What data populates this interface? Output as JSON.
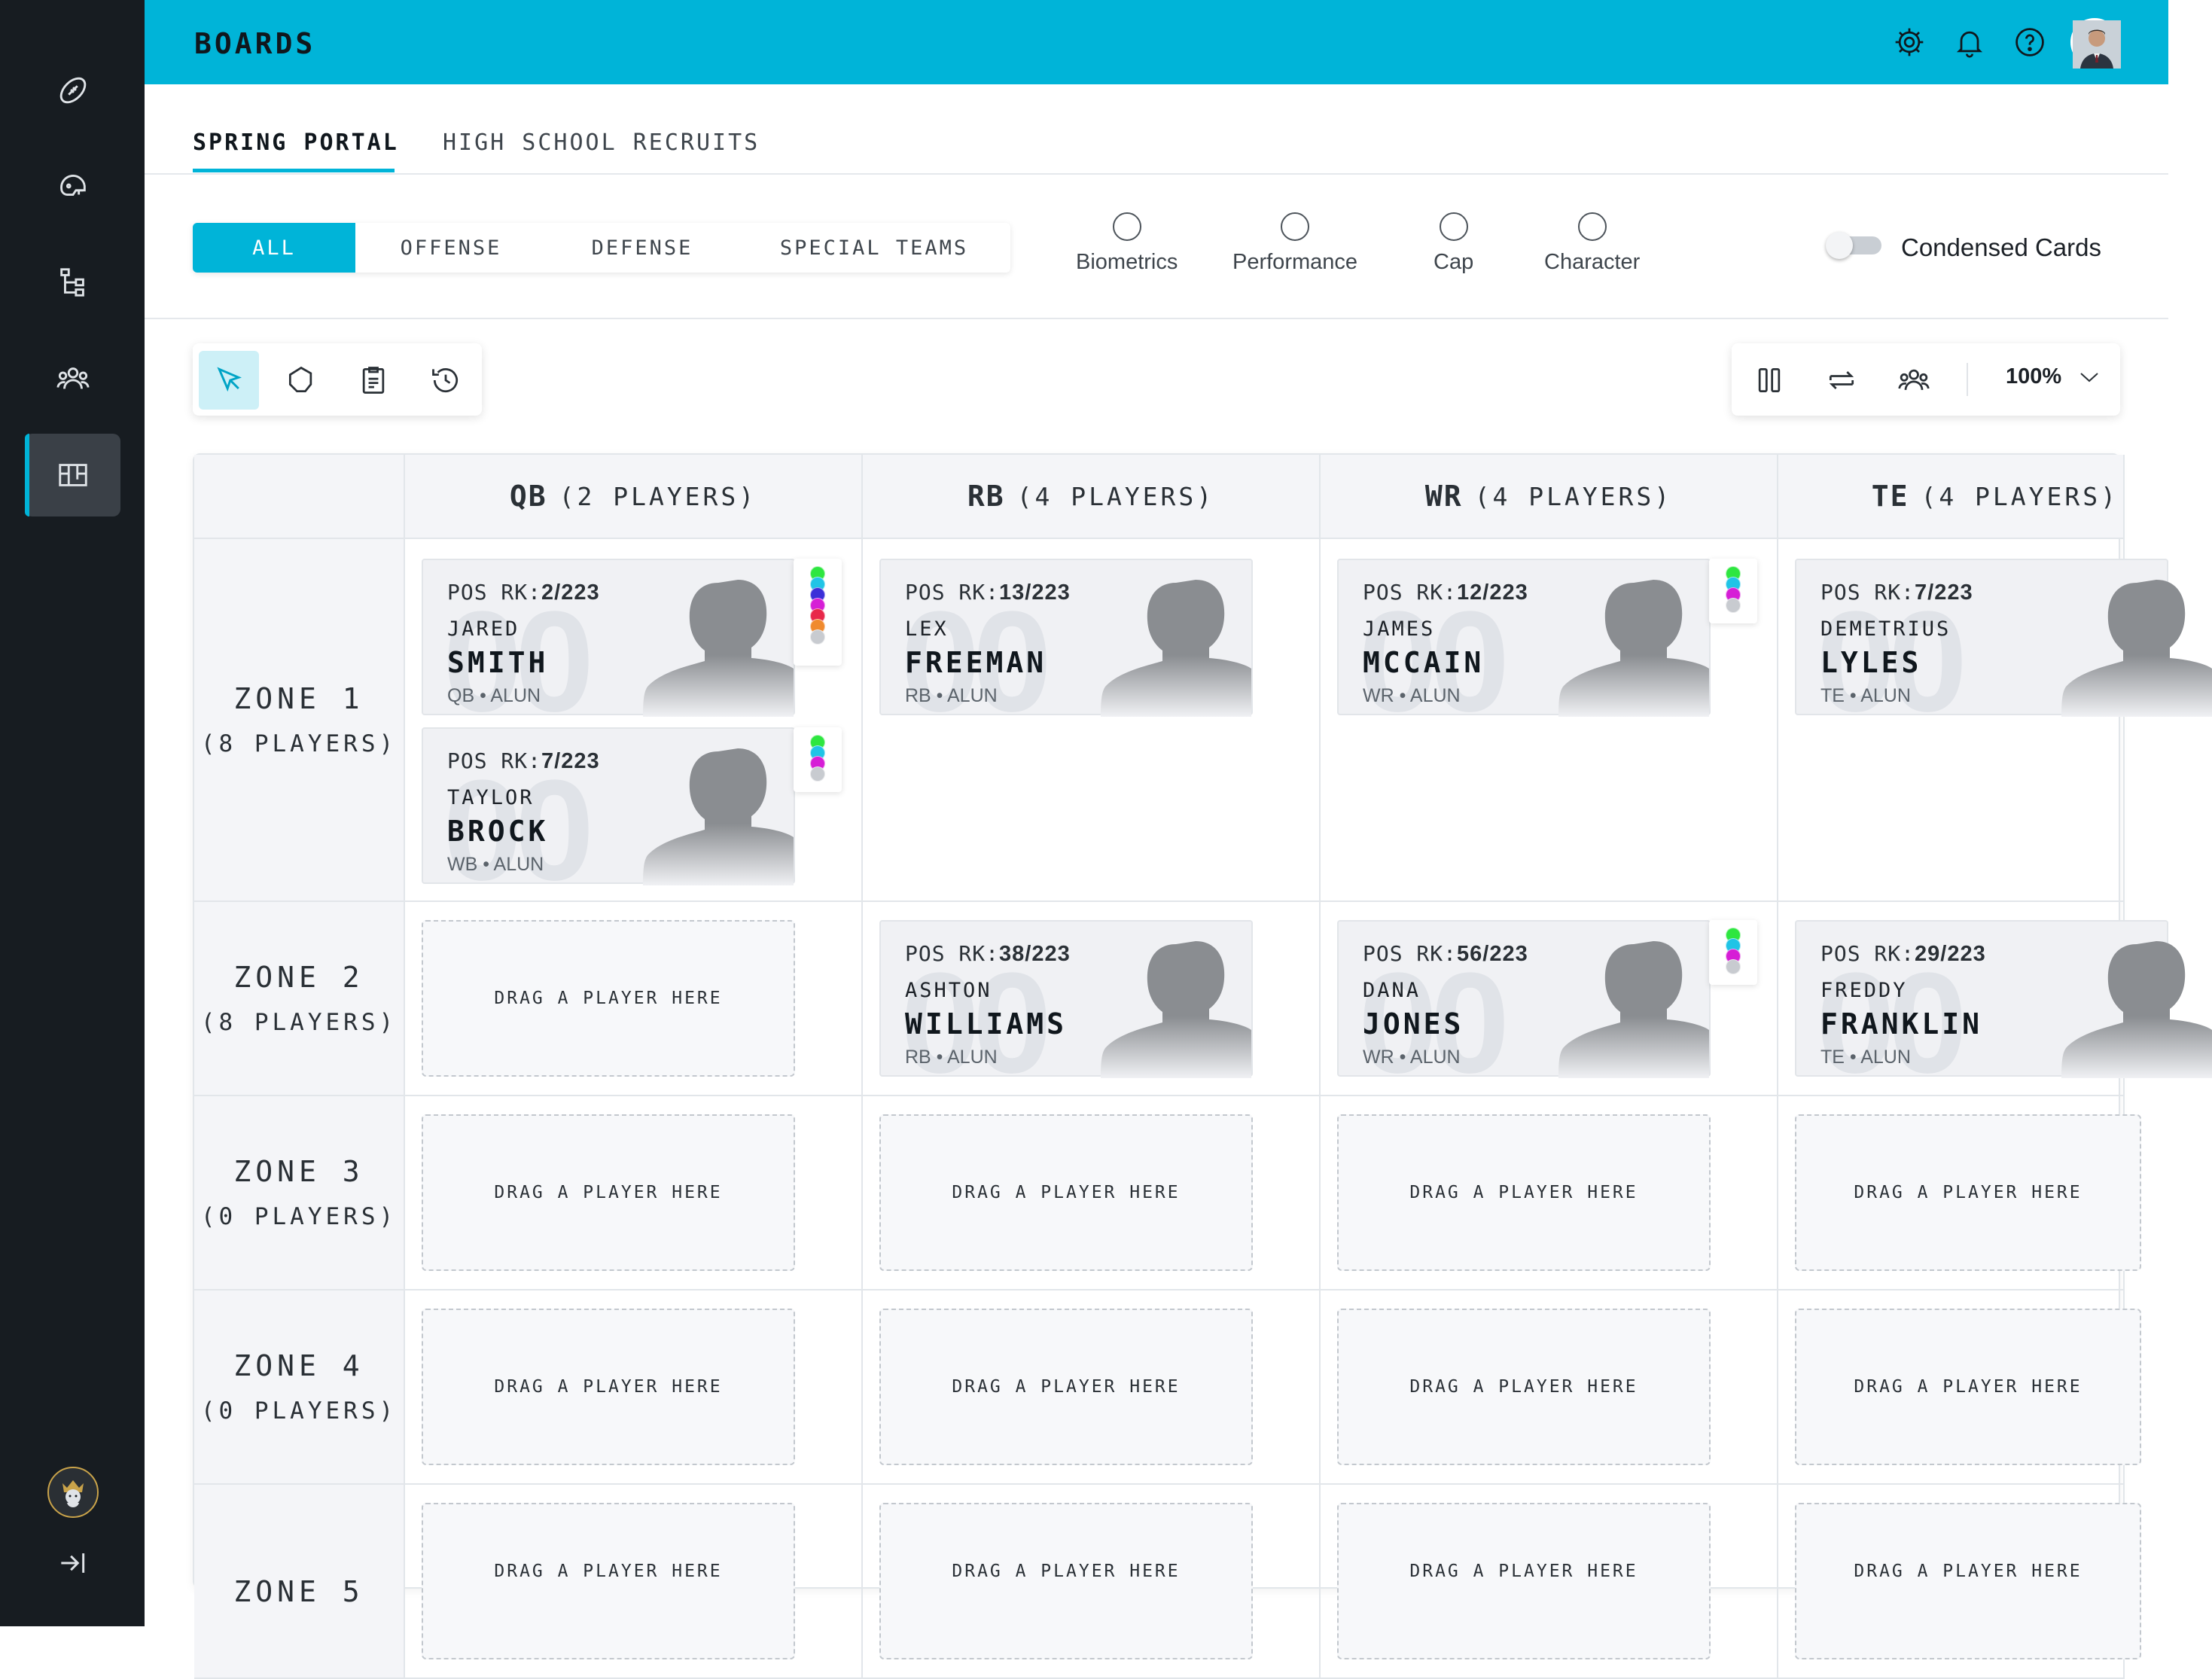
{
  "header": {
    "title": "BOARDS"
  },
  "tabs": [
    {
      "label": "SPRING PORTAL",
      "active": true
    },
    {
      "label": "HIGH SCHOOL RECRUITS",
      "active": false
    }
  ],
  "filters": {
    "segments": [
      "ALL",
      "OFFENSE",
      "DEFENSE",
      "SPECIAL TEAMS"
    ],
    "active_segment": "ALL",
    "radios": [
      "Biometrics",
      "Performance",
      "Cap",
      "Character"
    ],
    "toggle_label": "Condensed Cards",
    "toggle_on": false
  },
  "toolbar": {
    "zoom": "100%"
  },
  "colors": {
    "accent": "#00b4d8",
    "sidebar": "#171c21"
  },
  "board": {
    "columns": [
      {
        "pos": "QB",
        "count": "(2 PLAYERS)"
      },
      {
        "pos": "RB",
        "count": "(4 PLAYERS)"
      },
      {
        "pos": "WR",
        "count": "(4 PLAYERS)"
      },
      {
        "pos": "TE",
        "count": "(4 PLAYERS)"
      }
    ],
    "zones": [
      {
        "name": "ZONE 1",
        "count": "(8 PLAYERS)"
      },
      {
        "name": "ZONE 2",
        "count": "(8 PLAYERS)"
      },
      {
        "name": "ZONE 3",
        "count": "(0 PLAYERS)"
      },
      {
        "name": "ZONE 4",
        "count": "(0 PLAYERS)"
      },
      {
        "name": "ZONE 5",
        "count": ""
      }
    ],
    "rank_label": "POS RK:",
    "drop_text": "DRAG A PLAYER HERE",
    "players": [
      {
        "rank": "2/223",
        "first": "JARED",
        "last": "SMITH",
        "meta": "QB • ALUN",
        "bg": "00"
      },
      {
        "rank": "7/223",
        "first": "TAYLOR",
        "last": "BROCK",
        "meta": "WB • ALUN",
        "bg": "00"
      },
      {
        "rank": "13/223",
        "first": "LEX",
        "last": "FREEMAN",
        "meta": "RB • ALUN",
        "bg": "00"
      },
      {
        "rank": "12/223",
        "first": "JAMES",
        "last": "MCCAIN",
        "meta": "WR • ALUN",
        "bg": "00"
      },
      {
        "rank": "7/223",
        "first": "DEMETRIUS",
        "last": "LYLES",
        "meta": "TE • ALUN",
        "bg": "00"
      },
      {
        "rank": "38/223",
        "first": "ASHTON",
        "last": "WILLIAMS",
        "meta": "RB • ALUN",
        "bg": "00"
      },
      {
        "rank": "56/223",
        "first": "DANA",
        "last": "JONES",
        "meta": "WR • ALUN",
        "bg": "00"
      },
      {
        "rank": "29/223",
        "first": "FREDDY",
        "last": "FRANKLIN",
        "meta": "TE • ALUN",
        "bg": "00"
      }
    ],
    "tags": {
      "jared": [
        "#2ee640",
        "#20c4e6",
        "#3b2fd8",
        "#d61ed6",
        "#e8284a",
        "#f08a2e",
        "#c8cbd0"
      ],
      "taylor": [
        "#2ee640",
        "#20c4e6",
        "#d61ed6",
        "#c8cbd0"
      ],
      "james": [
        "#2ee640",
        "#20c4e6",
        "#d61ed6",
        "#c8cbd0"
      ],
      "dana": [
        "#2ee640",
        "#20c4e6",
        "#d61ed6",
        "#c8cbd0"
      ]
    }
  }
}
